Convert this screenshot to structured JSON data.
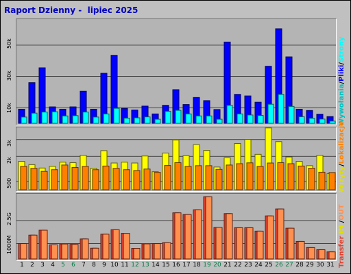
{
  "title": "Raport Dzienny -  lipiec 2025",
  "legend": {
    "top": [
      "Wywołania",
      "/",
      "Pliki",
      "/",
      "Strony"
    ],
    "middle": [
      "Wizyty",
      "/",
      "Lokalizacje"
    ],
    "bottom": [
      "Transfer",
      " IN ",
      "/",
      "OUT"
    ]
  },
  "colors": {
    "hits": "#0000ff",
    "files": "#00ffff",
    "pages": "#00c0c0",
    "visits": "#ffff00",
    "sites": "#ff8000",
    "kbytes": "#e04030",
    "kbytes_out": "#ff9050",
    "weekend_label": "#007f46",
    "title": "#0000c0"
  },
  "weekend_days": [
    5,
    6,
    12,
    13,
    19,
    20,
    26,
    27
  ],
  "chart_data": [
    {
      "type": "bar",
      "categories": [
        "1",
        "2",
        "3",
        "4",
        "5",
        "6",
        "7",
        "8",
        "9",
        "10",
        "11",
        "12",
        "13",
        "14",
        "15",
        "16",
        "17",
        "18",
        "19",
        "20",
        "21",
        "22",
        "23",
        "24",
        "25",
        "26",
        "27",
        "28",
        "29",
        "30",
        "31"
      ],
      "ylabel_ticks": [
        "10k",
        "30k",
        "50k"
      ],
      "ylim": [
        0,
        64000
      ],
      "series": [
        {
          "name": "Wywołania",
          "values": [
            9000,
            26000,
            35500,
            10500,
            9000,
            10500,
            20500,
            9000,
            32000,
            43500,
            9500,
            8500,
            11000,
            6000,
            11500,
            21500,
            12000,
            16500,
            14500,
            8800,
            52000,
            18500,
            17500,
            13500,
            36500,
            60500,
            42500,
            9000,
            8200,
            5800,
            4300
          ]
        },
        {
          "name": "Pliki",
          "values": [
            4000,
            6500,
            7200,
            7400,
            4700,
            4900,
            7200,
            4000,
            6000,
            9600,
            3300,
            3500,
            4100,
            2600,
            7700,
            8300,
            6000,
            4700,
            4700,
            2600,
            11500,
            6000,
            5300,
            5000,
            12200,
            18500,
            10800,
            4200,
            3200,
            2700,
            1400
          ]
        },
        {
          "name": "Strony",
          "values": [
            4000,
            6500,
            7200,
            7400,
            4700,
            4900,
            7200,
            4000,
            6000,
            9600,
            3300,
            3500,
            4100,
            2600,
            7700,
            8300,
            6000,
            4700,
            4700,
            2600,
            11500,
            6000,
            5300,
            5000,
            12200,
            18500,
            10800,
            4200,
            3200,
            2700,
            1400
          ]
        }
      ]
    },
    {
      "type": "bar",
      "categories": [
        "1",
        "2",
        "3",
        "4",
        "5",
        "6",
        "7",
        "8",
        "9",
        "10",
        "11",
        "12",
        "13",
        "14",
        "15",
        "16",
        "17",
        "18",
        "19",
        "20",
        "21",
        "22",
        "23",
        "24",
        "25",
        "26",
        "27",
        "28",
        "29",
        "30",
        "31"
      ],
      "ylabel_ticks": [
        "500",
        "2k",
        "3k"
      ],
      "ylim": [
        0,
        3650
      ],
      "series": [
        {
          "name": "Wizyty",
          "values": [
            1700,
            1500,
            1300,
            1400,
            1650,
            1620,
            2060,
            1280,
            2340,
            1600,
            1650,
            1600,
            2020,
            1080,
            2200,
            2980,
            2040,
            2700,
            2350,
            1360,
            1920,
            2770,
            3010,
            2120,
            3700,
            2880,
            1960,
            1700,
            1440,
            2060,
            970
          ]
        },
        {
          "name": "Lokalizacje",
          "values": [
            1400,
            1280,
            1100,
            1200,
            1480,
            1330,
            1400,
            1200,
            1420,
            1280,
            1200,
            1150,
            1240,
            1040,
            1450,
            1620,
            1400,
            1440,
            1440,
            1220,
            1480,
            1560,
            1610,
            1400,
            1600,
            1620,
            1560,
            1420,
            1290,
            1050,
            1030
          ]
        }
      ]
    },
    {
      "type": "bar",
      "categories": [
        "1",
        "2",
        "3",
        "4",
        "5",
        "6",
        "7",
        "8",
        "9",
        "10",
        "11",
        "12",
        "13",
        "14",
        "15",
        "16",
        "17",
        "18",
        "19",
        "20",
        "21",
        "22",
        "23",
        "24",
        "25",
        "26",
        "27",
        "28",
        "29",
        "30",
        "31"
      ],
      "ylabel_ticks": [
        "1000M",
        "2.5G"
      ],
      "ylim": [
        0,
        4100
      ],
      "series": [
        {
          "name": "Transfer IN",
          "values": [
            1000,
            1550,
            1870,
            920,
            970,
            950,
            1300,
            700,
            1610,
            1900,
            1670,
            690,
            980,
            1000,
            1060,
            3000,
            2890,
            3200,
            4050,
            2050,
            2950,
            2030,
            2030,
            1810,
            2800,
            3250,
            2000,
            1140,
            740,
            600,
            460
          ]
        },
        {
          "name": "Transfer OUT",
          "values": [
            1000,
            1550,
            1870,
            920,
            970,
            950,
            1300,
            700,
            1610,
            1900,
            1670,
            690,
            980,
            1000,
            1060,
            3000,
            2890,
            3200,
            4050,
            2050,
            2950,
            2030,
            2030,
            1810,
            2800,
            3250,
            2000,
            1140,
            740,
            600,
            460
          ]
        }
      ]
    }
  ]
}
